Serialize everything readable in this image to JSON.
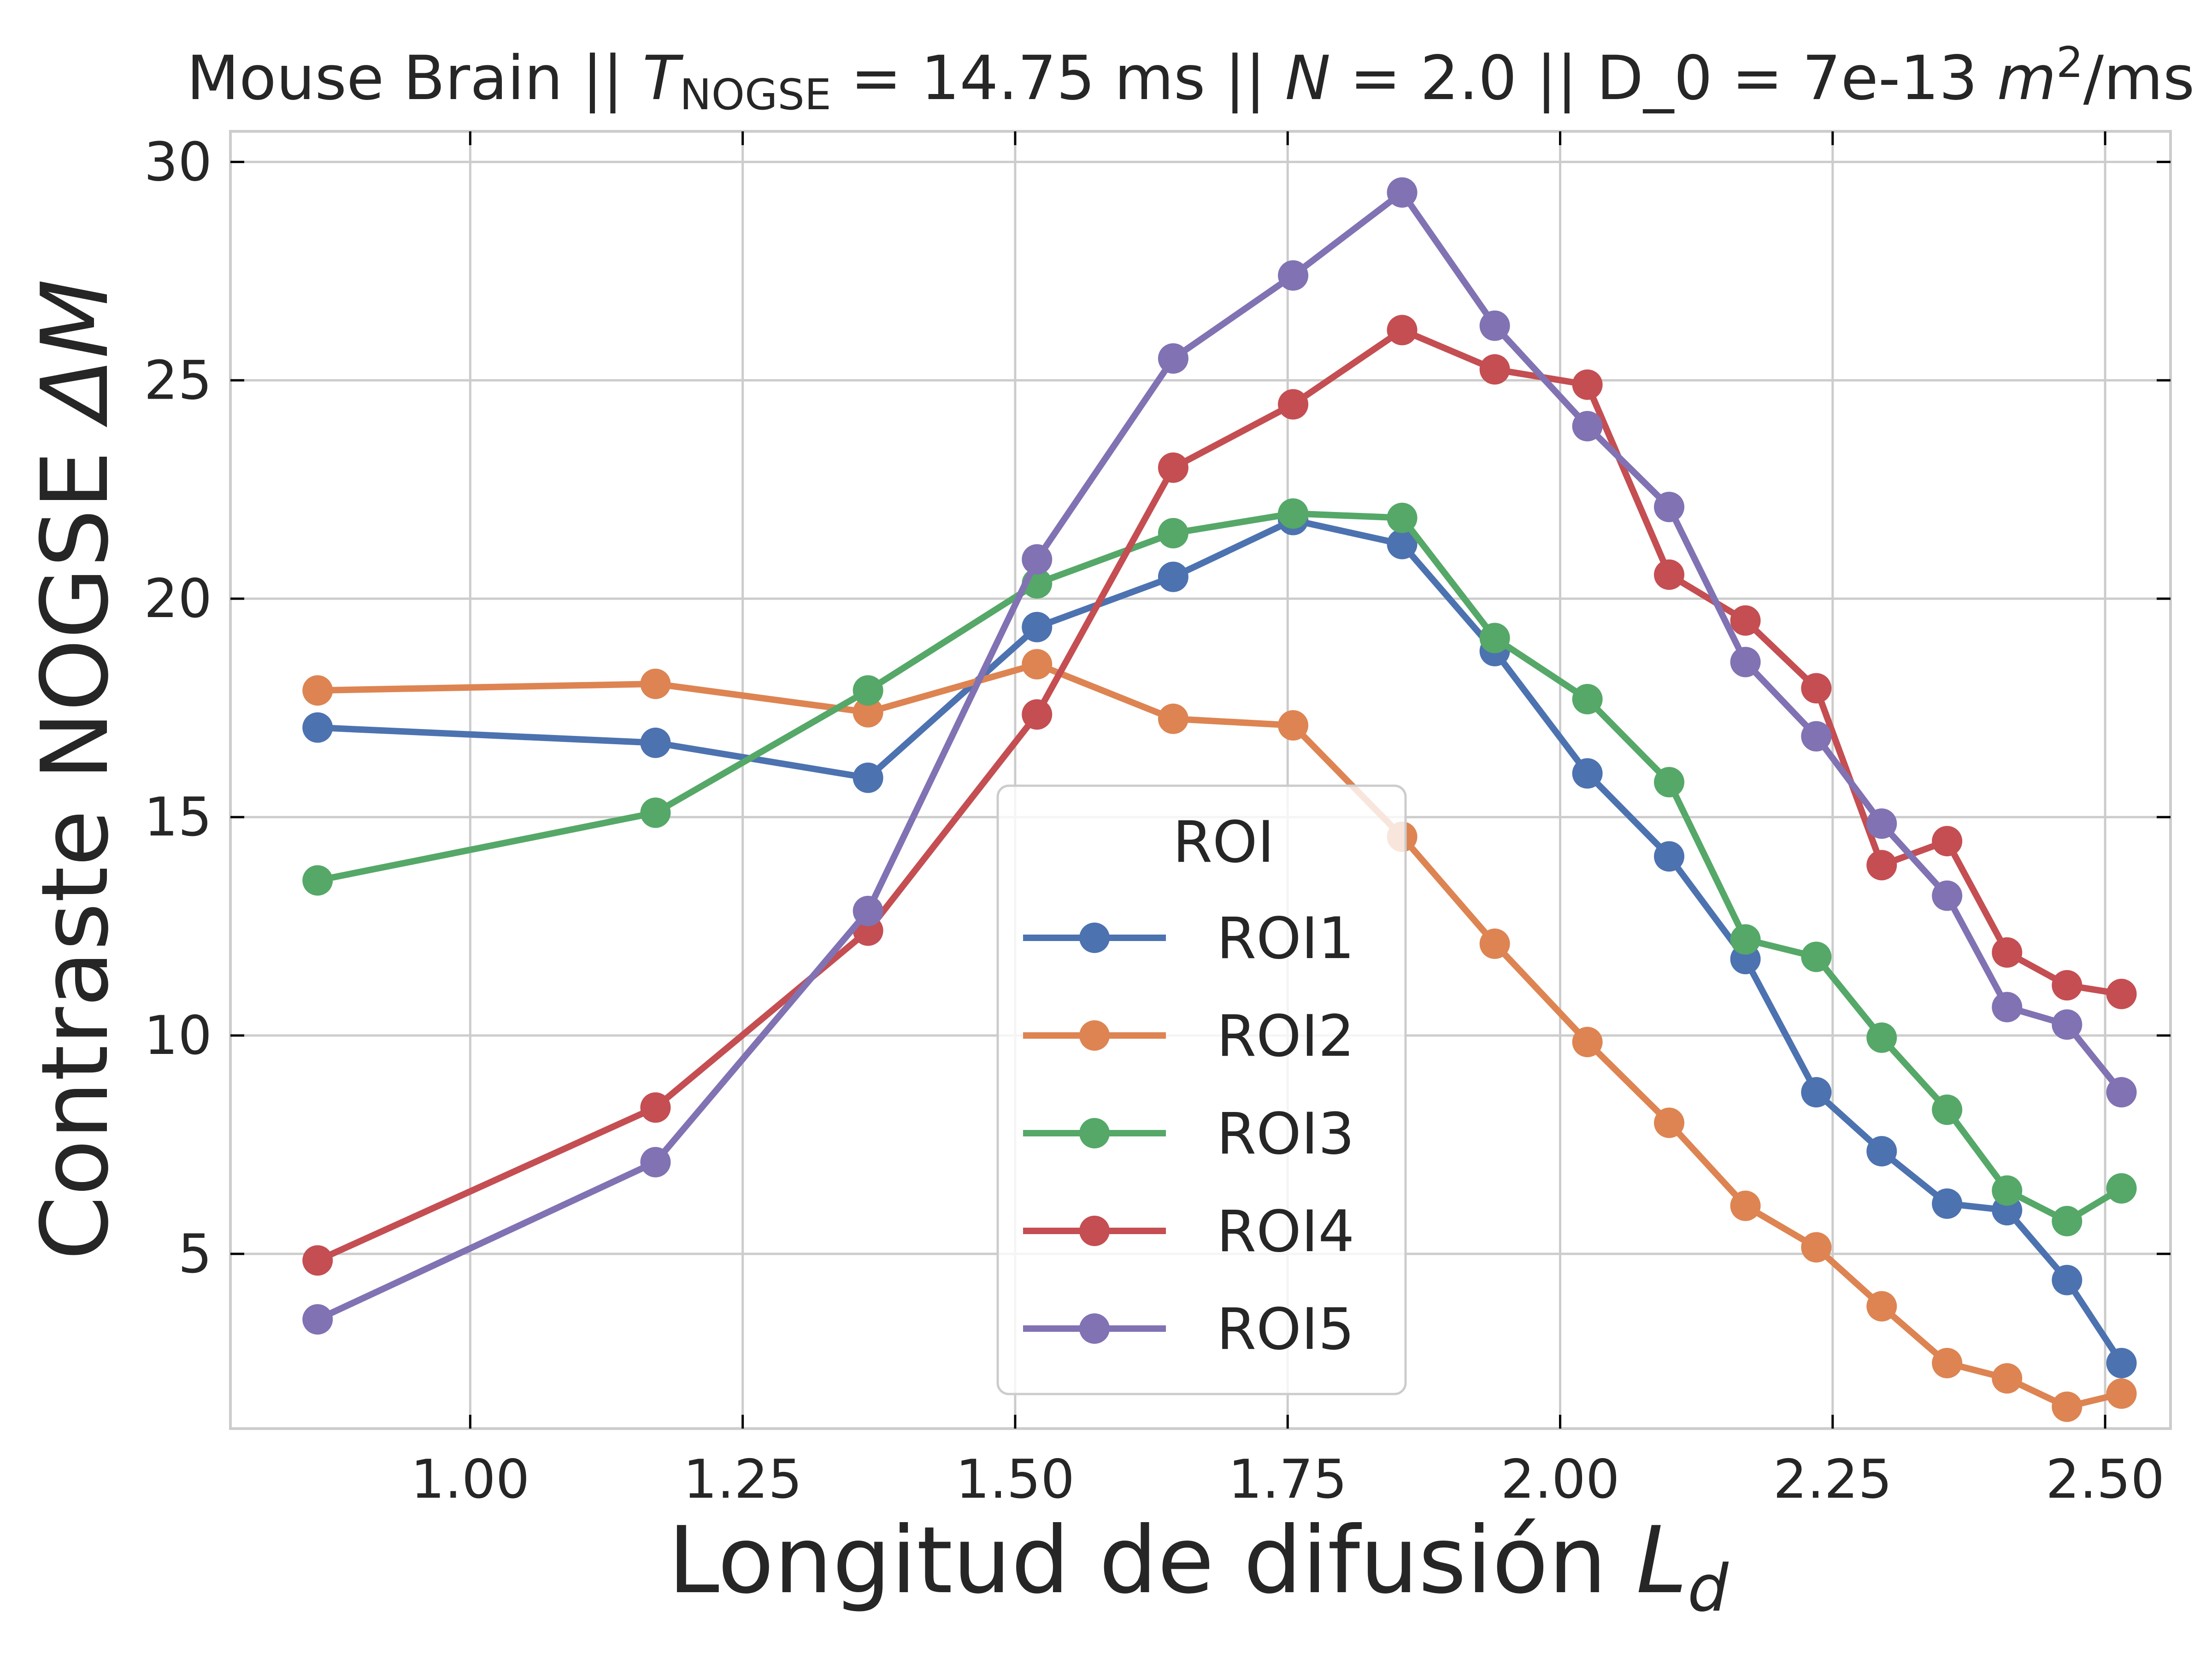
{
  "chart_data": {
    "type": "line",
    "title": {
      "prefix": "Mouse Brain || ",
      "t_symbol": "T",
      "t_subscript": "NOGSE",
      "t_value": " = 14.75 ms || ",
      "n_symbol": "N",
      "n_value": " = 2.0 || D_0 = 7e-13 ",
      "unit_symbol": "m",
      "unit_exponent": "2",
      "unit_suffix": "/ms"
    },
    "xlabel": {
      "text": "Longitud de difusión ",
      "symbol": "L",
      "subscript": "d"
    },
    "ylabel": {
      "text": "Contraste NOGSE ",
      "symbol": "ΔM"
    },
    "xlim": [
      0.78,
      2.56
    ],
    "ylim": [
      1.0,
      30.7
    ],
    "xticks": [
      1.0,
      1.25,
      1.5,
      1.75,
      2.0,
      2.25,
      2.5
    ],
    "xtick_labels": [
      "1.00",
      "1.25",
      "1.50",
      "1.75",
      "2.00",
      "2.25",
      "2.50"
    ],
    "yticks": [
      5,
      10,
      15,
      20,
      25,
      30
    ],
    "ytick_labels": [
      "5",
      "10",
      "15",
      "20",
      "25",
      "30"
    ],
    "grid": true,
    "legend": {
      "title": "ROI",
      "placement": "lower-center"
    },
    "x": [
      0.86,
      1.17,
      1.365,
      1.52,
      1.645,
      1.755,
      1.855,
      1.94,
      2.025,
      2.1,
      2.17,
      2.235,
      2.295,
      2.355,
      2.41,
      2.465,
      2.515
    ],
    "series": [
      {
        "name": "ROI1",
        "color": "#4c72b0",
        "values": [
          17.05,
          16.7,
          15.9,
          19.35,
          20.5,
          21.8,
          21.25,
          18.8,
          16.0,
          14.1,
          11.75,
          8.7,
          7.35,
          6.15,
          6.0,
          4.4,
          2.5
        ]
      },
      {
        "name": "ROI2",
        "color": "#dd8452",
        "values": [
          17.9,
          18.05,
          17.4,
          18.5,
          17.25,
          17.1,
          14.55,
          12.1,
          9.85,
          8.0,
          6.1,
          5.15,
          3.8,
          2.5,
          2.15,
          1.5,
          1.8
        ]
      },
      {
        "name": "ROI3",
        "color": "#55a868",
        "values": [
          13.55,
          15.1,
          17.9,
          20.35,
          21.5,
          21.95,
          21.85,
          19.1,
          17.7,
          15.8,
          12.2,
          11.8,
          9.95,
          8.3,
          6.45,
          5.75,
          6.5
        ]
      },
      {
        "name": "ROI4",
        "color": "#c44e52",
        "values": [
          4.85,
          8.35,
          12.4,
          17.35,
          23.0,
          24.45,
          26.15,
          25.25,
          24.9,
          20.55,
          19.5,
          17.95,
          13.9,
          14.45,
          11.9,
          11.15,
          10.95
        ]
      },
      {
        "name": "ROI5",
        "color": "#8172b3",
        "values": [
          3.5,
          7.1,
          12.85,
          20.9,
          25.5,
          27.4,
          29.3,
          26.25,
          23.95,
          22.1,
          18.55,
          16.85,
          14.85,
          13.2,
          10.65,
          10.25,
          8.7
        ]
      }
    ]
  }
}
